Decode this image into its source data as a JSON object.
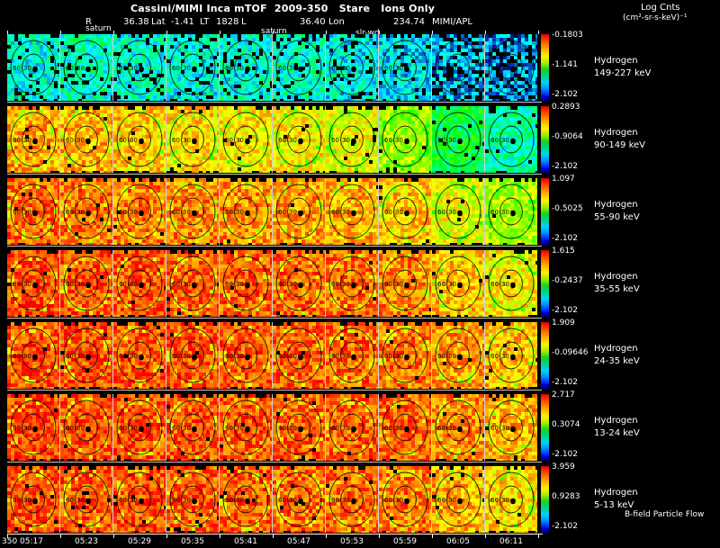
{
  "header": {
    "title": "Cassini/MIMI Inca mTOF  2009-350   Stare   Ions Only",
    "log_units_line1": "Log Cnts",
    "log_units_line2": "(cm²-sr-s-keV)⁻¹",
    "info_tokens": [
      "R",
      "36.38",
      "Lat",
      "-1.41",
      "LT",
      "1828",
      "L",
      "36.40",
      "Lon",
      "234.74",
      "MIMI/APL"
    ]
  },
  "annotations": [
    "saturn",
    "saturn",
    "slr-wd"
  ],
  "footer": {
    "b_field_label": "B-field Particle Flow"
  },
  "chart_data": {
    "type": "heatmap",
    "title": "Cassini/MIMI Inca mTOF 2009-350 Stare Ions Only",
    "colorbar_units": "Log Cnts (cm²-sr-s-keV)⁻¹",
    "layout": "7 energy-band rows x 10 time-step all-sky ion image panels, rainbow colorbar per row (red=high, blue=low log counts)",
    "time_labels": [
      "350 05:17",
      "05:23",
      "05:29",
      "05:35",
      "05:41",
      "05:47",
      "05:53",
      "05:59",
      "06:05",
      "06:11"
    ],
    "panel_ring_labels": [
      "60",
      "30"
    ],
    "rows": [
      {
        "species": "Hydrogen",
        "energy": "149-227 keV",
        "energy_kev": [
          149,
          227
        ],
        "cb_top": "-0.1803",
        "cb_mid": "-1.141",
        "cb_bottom": "-2.102",
        "scale_max": -0.1803,
        "scale_min": -2.102,
        "panel_levels": [
          0.28,
          0.3,
          0.29,
          0.27,
          0.27,
          0.29,
          0.25,
          0.23,
          0.17,
          0.14
        ],
        "black_fraction": 0.12
      },
      {
        "species": "Hydrogen",
        "energy": "90-149 keV",
        "energy_kev": [
          90,
          149
        ],
        "cb_top": "0.2893",
        "cb_mid": "-0.9064",
        "cb_bottom": "-2.102",
        "scale_max": 0.2893,
        "scale_min": -2.102,
        "panel_levels": [
          0.84,
          0.82,
          0.8,
          0.78,
          0.76,
          0.75,
          0.73,
          0.65,
          0.44,
          0.32
        ],
        "black_fraction": 0.02
      },
      {
        "species": "Hydrogen",
        "energy": "55-90 keV",
        "energy_kev": [
          55,
          90
        ],
        "cb_top": "1.097",
        "cb_mid": "-0.5025",
        "cb_bottom": "-2.102",
        "scale_max": 1.097,
        "scale_min": -2.102,
        "panel_levels": [
          0.9,
          0.89,
          0.88,
          0.87,
          0.86,
          0.85,
          0.83,
          0.8,
          0.72,
          0.66
        ],
        "black_fraction": 0.01
      },
      {
        "species": "Hydrogen",
        "energy": "35-55 keV",
        "energy_kev": [
          35,
          55
        ],
        "cb_top": "1.615",
        "cb_mid": "-0.2437",
        "cb_bottom": "-2.102",
        "scale_max": 1.615,
        "scale_min": -2.102,
        "panel_levels": [
          0.93,
          0.92,
          0.92,
          0.91,
          0.91,
          0.9,
          0.89,
          0.87,
          0.81,
          0.75
        ],
        "black_fraction": 0.01
      },
      {
        "species": "Hydrogen",
        "energy": "24-35 keV",
        "energy_kev": [
          24,
          35
        ],
        "cb_top": "1.909",
        "cb_mid": "-0.09646",
        "cb_bottom": "-2.102",
        "scale_max": 1.909,
        "scale_min": -2.102,
        "panel_levels": [
          0.93,
          0.93,
          0.92,
          0.92,
          0.91,
          0.91,
          0.9,
          0.89,
          0.85,
          0.81
        ],
        "black_fraction": 0.01
      },
      {
        "species": "Hydrogen",
        "energy": "13-24 keV",
        "energy_kev": [
          13,
          24
        ],
        "cb_top": "2.717",
        "cb_mid": "0.3074",
        "cb_bottom": "-2.102",
        "scale_max": 2.717,
        "scale_min": -2.102,
        "panel_levels": [
          0.94,
          0.93,
          0.93,
          0.92,
          0.92,
          0.91,
          0.91,
          0.9,
          0.87,
          0.83
        ],
        "black_fraction": 0.01
      },
      {
        "species": "Hydrogen",
        "energy": "5-13 keV",
        "energy_kev": [
          5,
          13
        ],
        "cb_top": "3.959",
        "cb_mid": "0.9283",
        "cb_bottom": "-2.102",
        "scale_max": 3.959,
        "scale_min": -2.102,
        "panel_levels": [
          0.93,
          0.92,
          0.92,
          0.91,
          0.91,
          0.9,
          0.89,
          0.88,
          0.83,
          0.78
        ],
        "black_fraction": 0.02
      }
    ]
  }
}
